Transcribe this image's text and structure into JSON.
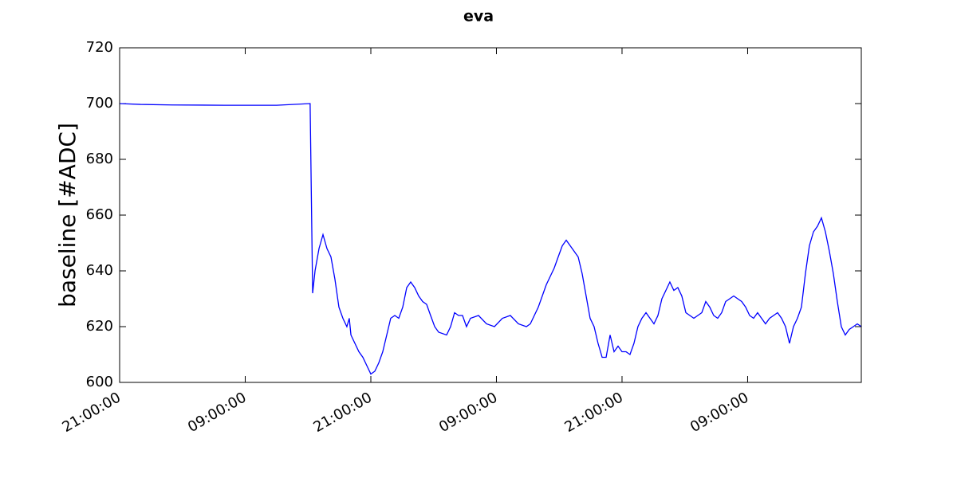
{
  "chart_data": {
    "type": "line",
    "title": "eva",
    "ylabel": "baseline [#ADC]",
    "x": [
      0,
      2,
      5,
      10,
      15,
      18.2,
      18.44,
      18.67,
      19.05,
      19.43,
      19.81,
      20.19,
      20.57,
      20.95,
      21.33,
      21.71,
      21.94,
      22.1,
      22.48,
      22.86,
      23.24,
      23.62,
      24.0,
      24.38,
      24.76,
      25.14,
      25.52,
      25.9,
      26.29,
      26.67,
      27.05,
      27.43,
      27.81,
      28.19,
      28.57,
      28.95,
      29.33,
      29.71,
      30.1,
      30.48,
      31.24,
      31.62,
      32.0,
      32.38,
      32.76,
      33.14,
      33.52,
      34.29,
      35.05,
      35.81,
      36.57,
      37.33,
      38.1,
      38.86,
      39.24,
      39.62,
      40.0,
      40.38,
      40.76,
      41.14,
      41.52,
      41.9,
      42.29,
      42.67,
      43.05,
      43.43,
      43.81,
      44.19,
      44.57,
      44.95,
      45.33,
      45.71,
      46.1,
      46.48,
      46.86,
      47.24,
      47.62,
      48.0,
      48.38,
      48.76,
      49.14,
      49.52,
      49.9,
      50.29,
      50.67,
      51.05,
      51.43,
      51.81,
      52.19,
      52.57,
      52.95,
      53.33,
      53.71,
      54.1,
      54.48,
      54.86,
      55.24,
      55.62,
      56.0,
      56.38,
      56.76,
      57.14,
      57.52,
      57.9,
      58.29,
      58.67,
      59.05,
      59.43,
      59.81,
      60.19,
      60.57,
      60.95,
      61.33,
      61.71,
      62.1,
      62.48,
      62.86,
      63.24,
      63.62,
      64.0,
      64.38,
      64.76,
      65.14,
      65.52,
      65.9,
      66.29,
      66.67,
      67.05,
      67.43,
      67.81,
      68.19,
      68.57,
      68.95,
      69.33,
      69.71,
      70.1,
      70.48,
      70.86
    ],
    "series": [
      {
        "name": "baseline",
        "color": "#0000ff",
        "values": [
          700,
          699.7,
          699.5,
          699.4,
          699.4,
          700,
          632,
          640,
          648,
          653,
          648,
          645,
          637,
          627,
          623,
          620,
          623,
          617,
          614,
          611,
          609,
          606,
          603,
          604,
          607,
          611,
          617,
          623,
          624,
          623,
          627,
          634,
          636,
          634,
          631,
          629,
          628,
          624,
          620,
          618,
          617,
          620,
          625,
          624,
          624,
          620,
          623,
          624,
          621,
          620,
          623,
          624,
          621,
          620,
          621,
          624,
          627,
          631,
          635,
          638,
          641,
          645,
          649,
          651,
          649,
          647,
          645,
          639,
          631,
          623,
          620,
          614,
          609,
          609,
          617,
          611,
          613,
          611,
          611,
          610,
          614,
          620,
          623,
          625,
          623,
          621,
          624,
          630,
          633,
          636,
          633,
          634,
          631,
          625,
          624,
          623,
          624,
          625,
          629,
          627,
          624,
          623,
          625,
          629,
          630,
          631,
          630,
          629,
          627,
          624,
          623,
          625,
          623,
          621,
          623,
          624,
          625,
          623,
          620,
          614,
          620,
          623,
          627,
          639,
          649,
          654,
          656,
          659,
          654,
          647,
          639,
          629,
          620,
          617,
          619,
          620,
          621,
          620
        ]
      }
    ],
    "xlim": [
      0,
      70.86
    ],
    "xticks": [
      {
        "value": 0,
        "label": "21:00:00"
      },
      {
        "value": 12,
        "label": "09:00:00"
      },
      {
        "value": 24,
        "label": "21:00:00"
      },
      {
        "value": 36,
        "label": "09:00:00"
      },
      {
        "value": 48,
        "label": "21:00:00"
      },
      {
        "value": 60,
        "label": "09:00:00"
      }
    ],
    "ylim": [
      600,
      720
    ],
    "yticks": [
      600,
      620,
      640,
      660,
      680,
      700,
      720
    ]
  }
}
